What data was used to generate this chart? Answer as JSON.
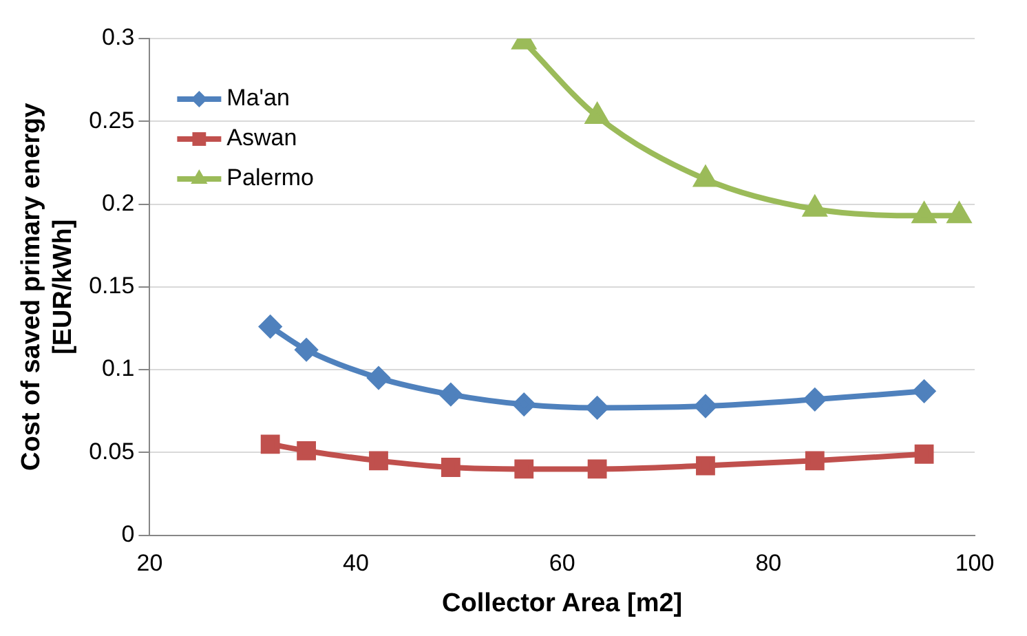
{
  "chart_data": {
    "type": "line",
    "xlabel": "Collector Area [m2]",
    "ylabel": "Cost of saved primary energy\n[EUR/kWh]",
    "xlim": [
      20,
      100
    ],
    "xticks": [
      20,
      40,
      60,
      80,
      100
    ],
    "ylim": [
      0,
      0.3
    ],
    "yticks": [
      0,
      0.05,
      0.1,
      0.15,
      0.2,
      0.25,
      0.3
    ],
    "grid": "y",
    "legend": "top left",
    "line_style": "solid",
    "series": [
      {
        "name": "Ma'an",
        "color": "#4f81bd",
        "marker": "diamond",
        "x": [
          31.7,
          35.2,
          42.2,
          49.2,
          56.3,
          63.4,
          73.9,
          84.5,
          95.1
        ],
        "values": [
          0.126,
          0.112,
          0.095,
          0.085,
          0.079,
          0.077,
          0.078,
          0.082,
          0.087
        ]
      },
      {
        "name": "Aswan",
        "color": "#c0504d",
        "marker": "square",
        "x": [
          31.7,
          35.2,
          42.2,
          49.2,
          56.3,
          63.4,
          73.9,
          84.5,
          95.1
        ],
        "values": [
          0.055,
          0.051,
          0.045,
          0.041,
          0.04,
          0.04,
          0.042,
          0.045,
          0.049
        ]
      },
      {
        "name": "Palermo",
        "color": "#9bbb59",
        "marker": "triangle",
        "x": [
          56.3,
          63.4,
          73.9,
          84.5,
          95.1,
          98.5
        ],
        "values": [
          0.298,
          0.253,
          0.215,
          0.197,
          0.193,
          0.193
        ]
      }
    ]
  }
}
